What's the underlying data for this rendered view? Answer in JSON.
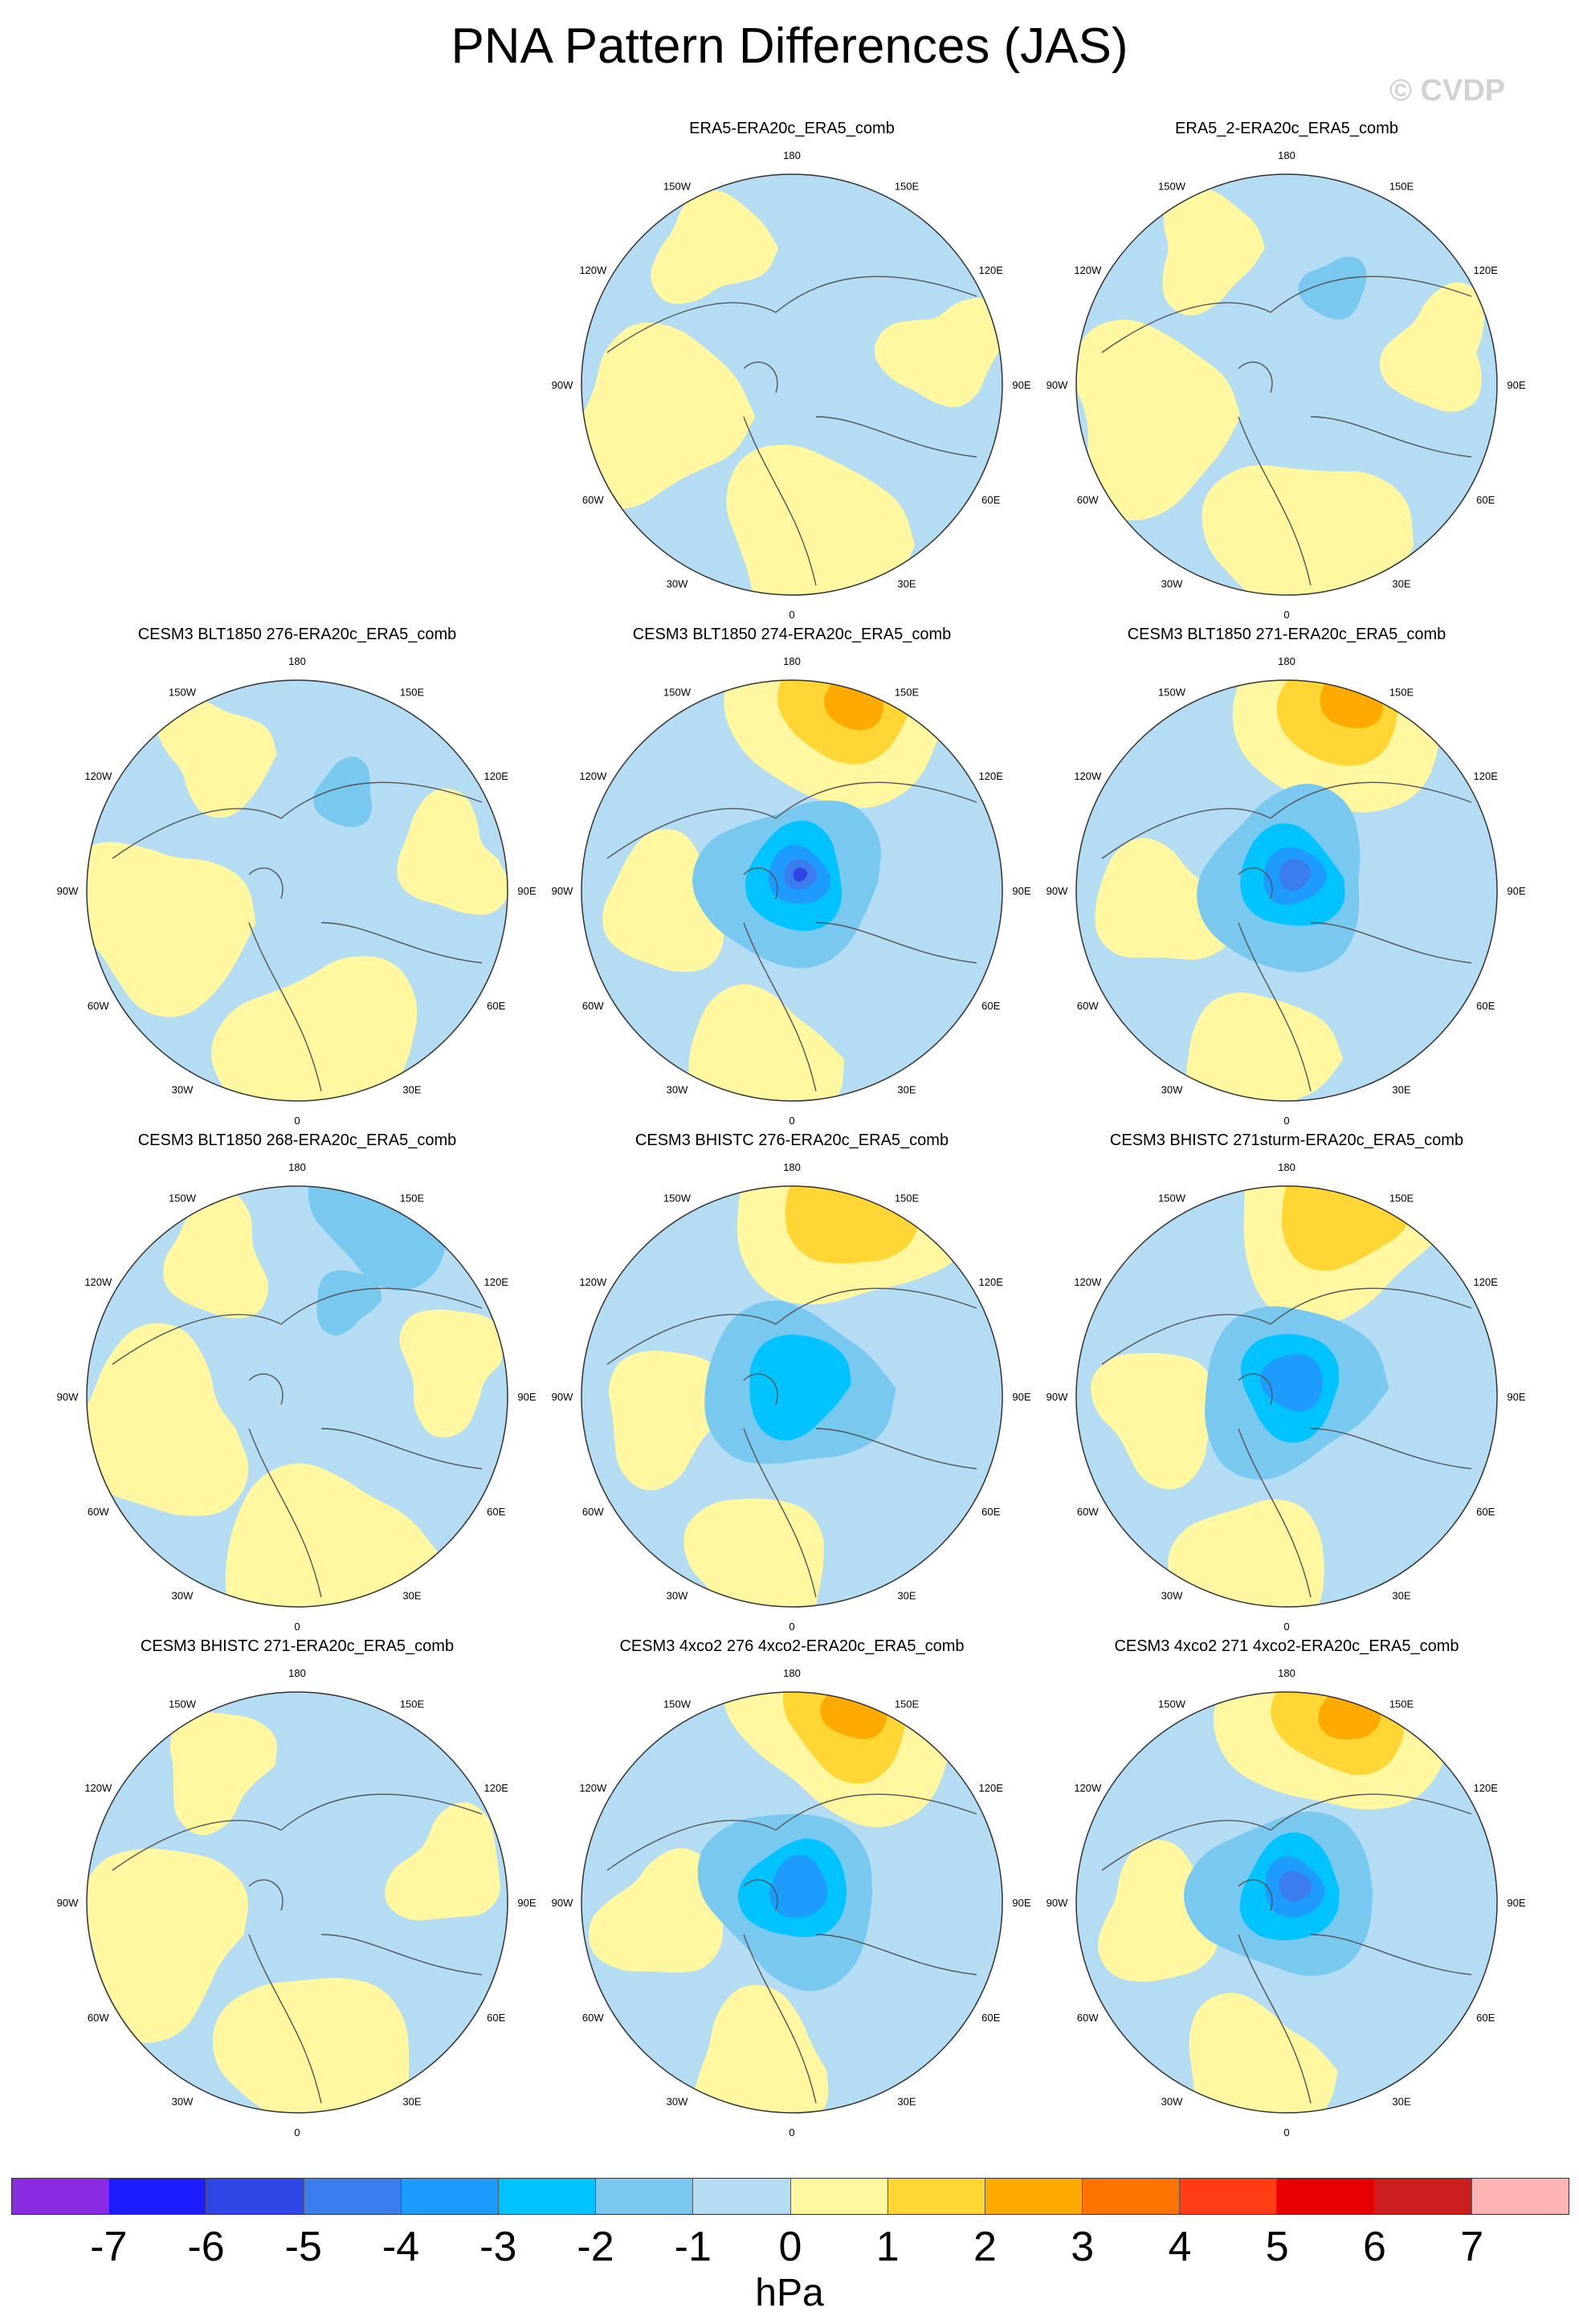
{
  "title": "PNA Pattern Differences (JAS)",
  "watermark": "© CVDP",
  "longitude_labels": [
    "180",
    "150E",
    "120E",
    "90E",
    "60E",
    "30E",
    "0",
    "30W",
    "60W",
    "90W",
    "120W",
    "150W"
  ],
  "panels": [
    {
      "title": "ERA5-ERA20c_ERA5_comb",
      "pattern": "mixed",
      "strength": 0.5
    },
    {
      "title": "ERA5_2-ERA20c_ERA5_comb",
      "pattern": "mixed",
      "strength": 0.7
    },
    {
      "title": "CESM3 BLT1850 276-ERA20c_ERA5_comb",
      "pattern": "mixed",
      "strength": 0.9
    },
    {
      "title": "CESM3 BLT1850 274-ERA20c_ERA5_comb",
      "pattern": "dipole",
      "strength": 4.6
    },
    {
      "title": "CESM3 BLT1850 271-ERA20c_ERA5_comb",
      "pattern": "dipole",
      "strength": 4.4
    },
    {
      "title": "CESM3 BLT1850 268-ERA20c_ERA5_comb",
      "pattern": "mixed",
      "strength": 1.6
    },
    {
      "title": "CESM3 BHISTC 276-ERA20c_ERA5_comb",
      "pattern": "dipole",
      "strength": 3.0
    },
    {
      "title": "CESM3 BHISTC 271sturm-ERA20c_ERA5_comb",
      "pattern": "dipole",
      "strength": 3.8
    },
    {
      "title": "CESM3 BHISTC 271-ERA20c_ERA5_comb",
      "pattern": "mixed",
      "strength": 0.6
    },
    {
      "title": "CESM3 4xco2 276 4xco2-ERA20c_ERA5_comb",
      "pattern": "dipole",
      "strength": 4.0
    },
    {
      "title": "CESM3 4xco2 271 4xco2-ERA20c_ERA5_comb",
      "pattern": "dipole",
      "strength": 4.3
    }
  ],
  "colorbar": {
    "units": "hPa",
    "labels": [
      "-7",
      "-6",
      "-5",
      "-4",
      "-3",
      "-2",
      "-1",
      "0",
      "1",
      "2",
      "3",
      "4",
      "5",
      "6",
      "7"
    ],
    "colors": [
      "#8a2be2",
      "#1c1cff",
      "#2f45e6",
      "#3c7ded",
      "#1e9bff",
      "#00c3ff",
      "#78c8f0",
      "#b4dcf2",
      "#fff8a0",
      "#ffd633",
      "#ffaa00",
      "#ff7300",
      "#ff3c14",
      "#e60000",
      "#cc1e1e",
      "#ffb4b4"
    ]
  }
}
